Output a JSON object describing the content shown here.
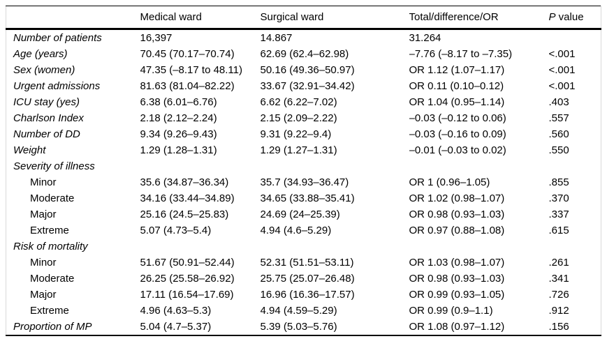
{
  "table": {
    "header": {
      "label": "",
      "medical": "Medical ward",
      "surgical": "Surgical ward",
      "total": "Total/difference/OR",
      "p_prefix": "P",
      "p_rest": " value"
    },
    "rows": [
      {
        "type": "main",
        "label": "Number of patients",
        "medical": "16,397",
        "surgical": "14.867",
        "total": "31.264",
        "p": ""
      },
      {
        "type": "main",
        "label": "Age (years)",
        "medical": "70.45 (70.17–70.74)",
        "surgical": "62.69 (62.4–62.98)",
        "total": "–7.76 (–8.17 to –7.35)",
        "p": "<.001"
      },
      {
        "type": "main",
        "label": "Sex (women)",
        "medical": "47.35 (–8.17 to 48.11)",
        "surgical": "50.16 (49.36–50.97)",
        "total": "OR 1.12 (1.07–1.17)",
        "p": "<.001"
      },
      {
        "type": "main",
        "label": "Urgent admissions",
        "medical": "81.63 (81.04–82.22)",
        "surgical": "33.67 (32.91–34.42)",
        "total": "OR 0.11 (0.10–0.12)",
        "p": "<.001"
      },
      {
        "type": "main",
        "label": "ICU stay (yes)",
        "medical": "6.38 (6.01–6.76)",
        "surgical": "6.62 (6.22–7.02)",
        "total": "OR 1.04 (0.95–1.14)",
        "p": ".403"
      },
      {
        "type": "main",
        "label": "Charlson Index",
        "medical": "2.18 (2.12–2.24)",
        "surgical": "2.15 (2.09–2.22)",
        "total": "–0.03 (–0.12 to 0.06)",
        "p": ".557"
      },
      {
        "type": "main",
        "label": "Number of DD",
        "medical": "9.34 (9.26–9.43)",
        "surgical": "9.31 (9.22–9.4)",
        "total": "–0.03 (–0.16 to 0.09)",
        "p": ".560"
      },
      {
        "type": "main",
        "label": "Weight",
        "medical": "1.29 (1.28–1.31)",
        "surgical": "1.29 (1.27–1.31)",
        "total": "–0.01 (–0.03 to 0.02)",
        "p": ".550"
      },
      {
        "type": "section",
        "label": "Severity of illness",
        "medical": "",
        "surgical": "",
        "total": "",
        "p": ""
      },
      {
        "type": "sub",
        "label": "Minor",
        "medical": "35.6 (34.87–36.34)",
        "surgical": "35.7 (34.93–36.47)",
        "total": "OR 1 (0.96–1.05)",
        "p": ".855"
      },
      {
        "type": "sub",
        "label": "Moderate",
        "medical": "34.16 (33.44–34.89)",
        "surgical": "34.65 (33.88–35.41)",
        "total": "OR 1.02 (0.98–1.07)",
        "p": ".370"
      },
      {
        "type": "sub",
        "label": "Major",
        "medical": "25.16 (24.5–25.83)",
        "surgical": "24.69 (24–25.39)",
        "total": "OR 0.98 (0.93–1.03)",
        "p": ".337"
      },
      {
        "type": "sub",
        "label": "Extreme",
        "medical": "5.07 (4.73–5.4)",
        "surgical": "4.94 (4.6–5.29)",
        "total": "OR 0.97 (0.88–1.08)",
        "p": ".615"
      },
      {
        "type": "section",
        "label": "Risk of mortality",
        "medical": "",
        "surgical": "",
        "total": "",
        "p": ""
      },
      {
        "type": "sub",
        "label": "Minor",
        "medical": "51.67 (50.91–52.44)",
        "surgical": "52.31 (51.51–53.11)",
        "total": "OR 1.03 (0.98–1.07)",
        "p": ".261"
      },
      {
        "type": "sub",
        "label": "Moderate",
        "medical": "26.25 (25.58–26.92)",
        "surgical": "25.75 (25.07–26.48)",
        "total": "OR 0.98 (0.93–1.03)",
        "p": ".341"
      },
      {
        "type": "sub",
        "label": "Major",
        "medical": "17.11 (16.54–17.69)",
        "surgical": "16.96 (16.36–17.57)",
        "total": "OR 0.99 (0.93–1.05)",
        "p": ".726"
      },
      {
        "type": "sub",
        "label": "Extreme",
        "medical": "4.96 (4.63–5.3)",
        "surgical": "4.94 (4.59–5.29)",
        "total": "OR 0.99 (0.9–1.1)",
        "p": ".912"
      },
      {
        "type": "main",
        "label": "Proportion of MP",
        "medical": "5.04 (4.7–5.37)",
        "surgical": "5.39 (5.03–5.76)",
        "total": "OR 1.08 (0.97–1.12)",
        "p": ".156"
      }
    ]
  }
}
